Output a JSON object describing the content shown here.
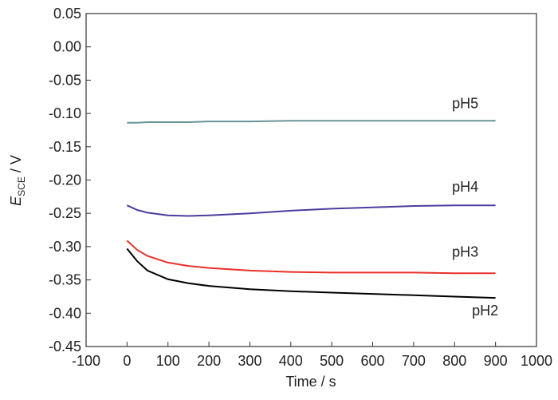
{
  "chart_data": {
    "type": "line",
    "y_label": {
      "symbol": "E",
      "subscript": "SCE",
      "unit": " / V"
    },
    "x_label": "Time / s",
    "x": [
      0,
      25,
      50,
      100,
      150,
      200,
      300,
      400,
      500,
      600,
      700,
      800,
      900
    ],
    "series": [
      {
        "name": "pH5",
        "color": "#6a9494",
        "values": [
          -0.114,
          -0.114,
          -0.113,
          -0.113,
          -0.113,
          -0.112,
          -0.112,
          -0.111,
          -0.111,
          -0.111,
          -0.111,
          -0.111,
          -0.111
        ]
      },
      {
        "name": "pH4",
        "color": "#4a3e9e",
        "values": [
          -0.238,
          -0.245,
          -0.249,
          -0.253,
          -0.254,
          -0.253,
          -0.25,
          -0.246,
          -0.243,
          -0.241,
          -0.239,
          -0.238,
          -0.238
        ]
      },
      {
        "name": "pH3",
        "color": "#e8302a",
        "values": [
          -0.291,
          -0.305,
          -0.314,
          -0.324,
          -0.329,
          -0.332,
          -0.336,
          -0.338,
          -0.339,
          -0.339,
          -0.339,
          -0.34,
          -0.34
        ]
      },
      {
        "name": "pH2",
        "color": "#000000",
        "values": [
          -0.303,
          -0.322,
          -0.336,
          -0.349,
          -0.355,
          -0.359,
          -0.364,
          -0.367,
          -0.369,
          -0.371,
          -0.373,
          -0.375,
          -0.377
        ]
      }
    ],
    "xlim": [
      -100,
      1000
    ],
    "xticks": [
      -100,
      0,
      100,
      200,
      300,
      400,
      500,
      600,
      700,
      800,
      900,
      1000
    ],
    "ylim": [
      -0.45,
      0.05
    ],
    "yticks": [
      0.05,
      {
        "value": 0,
        "label": "0.00"
      },
      -0.05,
      {
        "value": -0.1,
        "label": "-0.10"
      },
      -0.15,
      {
        "value": -0.2,
        "label": "-0.20"
      },
      -0.25,
      {
        "value": -0.3,
        "label": "-0.30"
      },
      -0.35,
      {
        "value": -0.4,
        "label": "-0.40"
      },
      -0.45
    ],
    "grid": false
  }
}
